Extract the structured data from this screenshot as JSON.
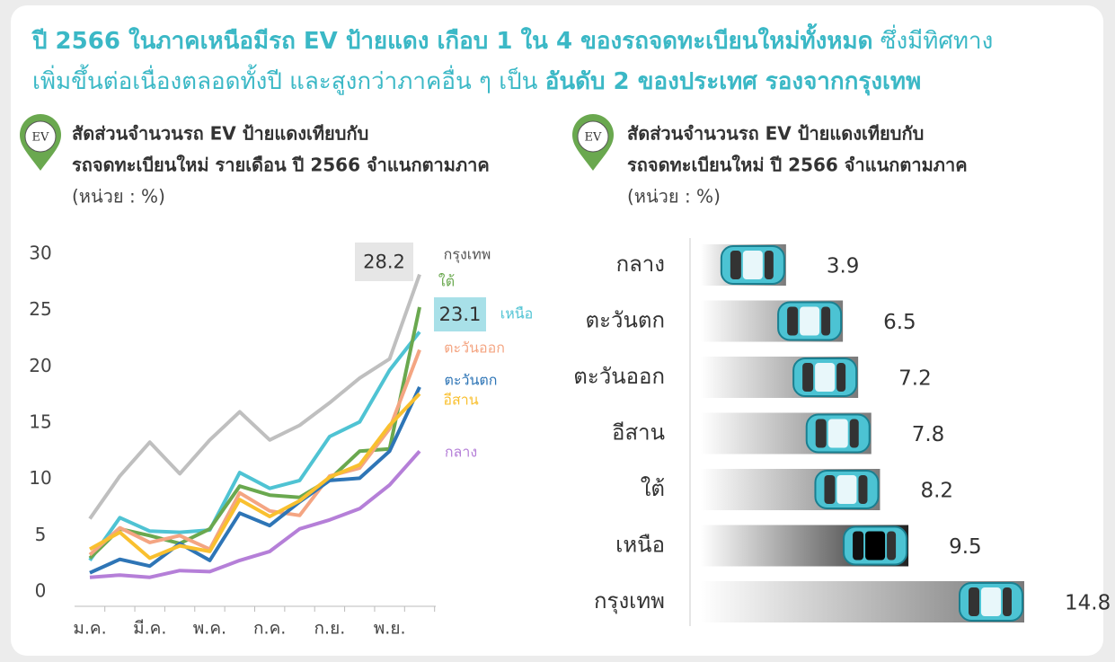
{
  "header": {
    "title_parts": [
      "ปี 2566 ในภาคเหนือมีรถ EV ป้ายแดง เกือบ 1 ใน 4  ของรถจดทะเบียนใหม่ทั้งหมด",
      " ซึ่งมีทิศทาง",
      "เพิ่มขึ้นต่อเนื่องตลอดทั้งปี และสูงกว่าภาคอื่น ๆ เป็น ",
      "อันดับ 2 ของประเทศ รองจากกรุงเทพ"
    ]
  },
  "chart_data": [
    {
      "type": "line",
      "icon_label": "EV",
      "title": [
        "สัดส่วนจำนวนรถ EV ป้ายแดงเทียบกับ",
        "รถจดทะเบียนใหม่ รายเดือน ปี 2566 จำแนกตามภาค"
      ],
      "unit": "(หน่วย : %)",
      "categories": [
        "ม.ค.",
        null,
        "มี.ค.",
        null,
        "พ.ค.",
        null,
        "ก.ค.",
        null,
        "ก.ย.",
        null,
        "พ.ย.",
        null
      ],
      "ylim": [
        0,
        30
      ],
      "yticks": [
        0,
        5,
        10,
        15,
        20,
        25,
        30
      ],
      "grid": false,
      "series": [
        {
          "name": "กรุงเทพ",
          "color": "#bfbfbf",
          "values": [
            6.5,
            10.3,
            13.3,
            10.5,
            13.5,
            16.0,
            13.5,
            14.8,
            16.8,
            19.0,
            20.7,
            28.2
          ]
        },
        {
          "name": "เหนือ",
          "color": "#4fc3d3",
          "values": [
            2.8,
            6.6,
            5.4,
            5.3,
            5.5,
            10.6,
            9.2,
            9.9,
            13.8,
            15.1,
            19.7,
            23.1
          ]
        },
        {
          "name": "ใต้",
          "color": "#6aa84f",
          "values": [
            3.0,
            5.6,
            5.0,
            4.3,
            5.6,
            9.4,
            8.6,
            8.4,
            10.0,
            12.5,
            12.7,
            25.3
          ]
        },
        {
          "name": "ตะวันออก",
          "color": "#f4a582",
          "values": [
            3.3,
            5.7,
            4.4,
            5.0,
            3.8,
            8.8,
            7.2,
            6.8,
            10.3,
            11.0,
            14.5,
            21.5
          ]
        },
        {
          "name": "ตะวันตก",
          "color": "#2e75b6",
          "values": [
            1.7,
            2.9,
            2.3,
            4.3,
            2.8,
            7.0,
            5.9,
            8.0,
            9.9,
            10.1,
            12.5,
            18.2
          ]
        },
        {
          "name": "อีสาน",
          "color": "#f9c02f",
          "values": [
            3.8,
            5.3,
            3.0,
            4.1,
            3.6,
            8.2,
            6.7,
            8.1,
            10.2,
            11.3,
            14.8,
            17.6
          ]
        },
        {
          "name": "กลาง",
          "color": "#b57fd8",
          "values": [
            1.3,
            1.5,
            1.3,
            1.9,
            1.8,
            2.8,
            3.6,
            5.6,
            6.4,
            7.4,
            9.5,
            12.5
          ]
        }
      ]
    },
    {
      "type": "bar",
      "icon_label": "EV",
      "title": [
        "สัดส่วนจำนวนรถ EV ป้ายแดงเทียบกับ",
        "รถจดทะเบียนใหม่ ปี 2566 จำแนกตามภาค"
      ],
      "unit": "(หน่วย : %)",
      "categories": [
        "กลาง",
        "ตะวันตก",
        "ตะวันออก",
        "อีสาน",
        "ใต้",
        "เหนือ",
        "กรุงเทพ"
      ],
      "values": [
        3.9,
        6.5,
        7.2,
        7.8,
        8.2,
        9.5,
        14.8
      ],
      "color": "#4cc3d3",
      "highlight_category": "เหนือ"
    }
  ]
}
